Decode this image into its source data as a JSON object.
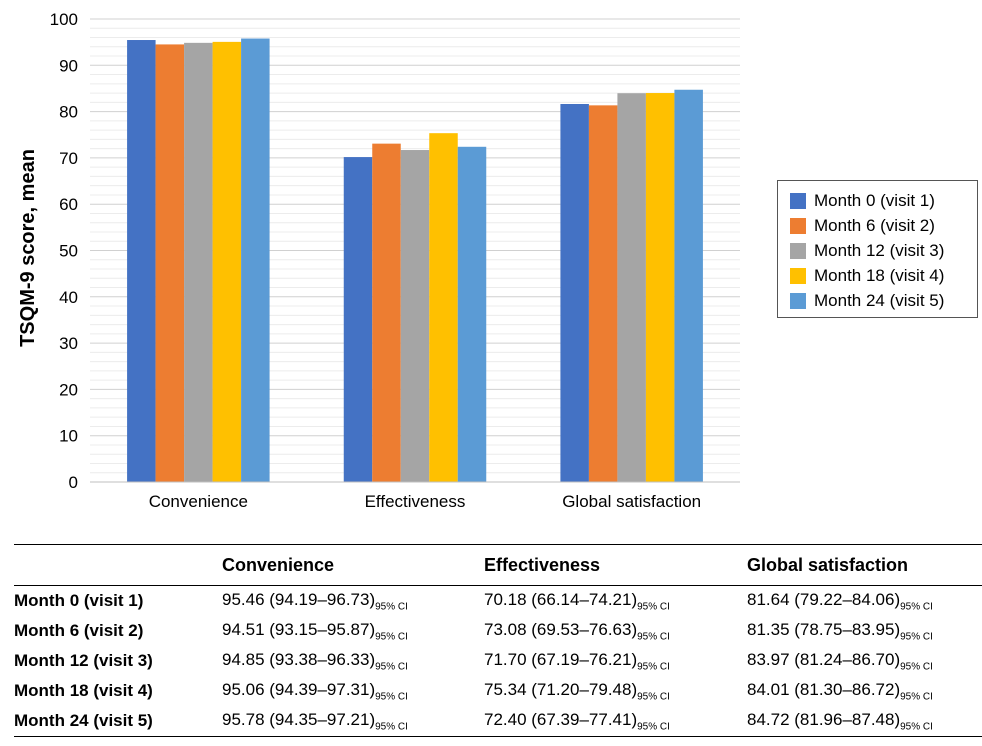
{
  "chart_data": {
    "type": "bar",
    "ylabel": "TSQM-9 score, mean",
    "xlabel": "",
    "title": "",
    "ylim": [
      0,
      100
    ],
    "yticks": [
      0,
      10,
      20,
      30,
      40,
      50,
      60,
      70,
      80,
      90,
      100
    ],
    "grid": true,
    "legend_position": "right",
    "categories": [
      "Convenience",
      "Effectiveness",
      "Global satisfaction"
    ],
    "series": [
      {
        "name": "Month 0 (visit 1)",
        "color": "#4472C4",
        "values": [
          95.46,
          70.18,
          81.64
        ]
      },
      {
        "name": "Month 6 (visit 2)",
        "color": "#ED7D31",
        "values": [
          94.51,
          73.08,
          81.35
        ]
      },
      {
        "name": "Month 12 (visit 3)",
        "color": "#A5A5A5",
        "values": [
          94.85,
          71.7,
          83.97
        ]
      },
      {
        "name": "Month 18 (visit 4)",
        "color": "#FFC000",
        "values": [
          95.06,
          75.34,
          84.01
        ]
      },
      {
        "name": "Month 24 (visit 5)",
        "color": "#5B9BD5",
        "values": [
          95.78,
          72.4,
          84.72
        ]
      }
    ]
  },
  "table": {
    "headers": [
      "",
      "Convenience",
      "Effectiveness",
      "Global satisfaction"
    ],
    "ci_label": "95% CI",
    "rows": [
      {
        "label": "Month 0 (visit 1)",
        "cells": [
          "95.46 (94.19–96.73)",
          "70.18 (66.14–74.21)",
          "81.64 (79.22–84.06)"
        ]
      },
      {
        "label": "Month 6 (visit 2)",
        "cells": [
          "94.51 (93.15–95.87)",
          "73.08 (69.53–76.63)",
          "81.35 (78.75–83.95)"
        ]
      },
      {
        "label": "Month 12 (visit 3)",
        "cells": [
          "94.85 (93.38–96.33)",
          "71.70 (67.19–76.21)",
          "83.97 (81.24–86.70)"
        ]
      },
      {
        "label": "Month 18 (visit 4)",
        "cells": [
          "95.06 (94.39–97.31)",
          "75.34 (71.20–79.48)",
          "84.01 (81.30–86.72)"
        ]
      },
      {
        "label": "Month 24 (visit 5)",
        "cells": [
          "95.78 (94.35–97.21)",
          "72.40 (67.39–77.41)",
          "84.72 (81.96–87.48)"
        ]
      }
    ]
  }
}
